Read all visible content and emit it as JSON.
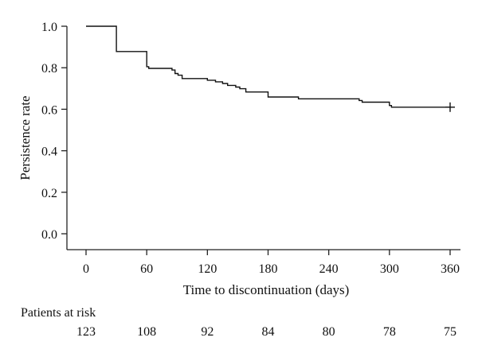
{
  "chart_data": {
    "type": "line",
    "title": "",
    "xlabel": "Time to discontinuation (days)",
    "ylabel": "Persistence rate",
    "xlim": [
      -10,
      372
    ],
    "ylim": [
      -0.08,
      1.0
    ],
    "x_ticks": [
      0,
      60,
      120,
      180,
      240,
      300,
      360
    ],
    "y_ticks": [
      0.0,
      0.2,
      0.4,
      0.6,
      0.8,
      1.0
    ],
    "x_tick_labels": [
      "0",
      "60",
      "120",
      "180",
      "240",
      "300",
      "360"
    ],
    "y_tick_labels": [
      "0.0",
      "0.2",
      "0.4",
      "0.6",
      "0.8",
      "1.0"
    ],
    "grid": false,
    "series": [
      {
        "style": "step",
        "points": [
          [
            0,
            1.0
          ],
          [
            30,
            1.0
          ],
          [
            30,
            0.878
          ],
          [
            60,
            0.878
          ],
          [
            60,
            0.805
          ],
          [
            62,
            0.805
          ],
          [
            62,
            0.797
          ],
          [
            85,
            0.797
          ],
          [
            85,
            0.789
          ],
          [
            88,
            0.789
          ],
          [
            88,
            0.772
          ],
          [
            91,
            0.772
          ],
          [
            91,
            0.764
          ],
          [
            95,
            0.764
          ],
          [
            95,
            0.748
          ],
          [
            120,
            0.748
          ],
          [
            120,
            0.74
          ],
          [
            128,
            0.74
          ],
          [
            128,
            0.732
          ],
          [
            135,
            0.732
          ],
          [
            135,
            0.724
          ],
          [
            140,
            0.724
          ],
          [
            140,
            0.715
          ],
          [
            148,
            0.715
          ],
          [
            148,
            0.707
          ],
          [
            152,
            0.707
          ],
          [
            152,
            0.699
          ],
          [
            158,
            0.699
          ],
          [
            158,
            0.683
          ],
          [
            180,
            0.683
          ],
          [
            180,
            0.659
          ],
          [
            210,
            0.659
          ],
          [
            210,
            0.65
          ],
          [
            270,
            0.65
          ],
          [
            270,
            0.642
          ],
          [
            273,
            0.642
          ],
          [
            273,
            0.634
          ],
          [
            300,
            0.634
          ],
          [
            300,
            0.618
          ],
          [
            302,
            0.618
          ],
          [
            302,
            0.61
          ],
          [
            360,
            0.61
          ]
        ],
        "censored": [
          [
            360,
            0.61
          ]
        ]
      }
    ],
    "risk_table": {
      "label": "Patients at risk",
      "times": [
        0,
        60,
        120,
        180,
        240,
        300,
        360
      ],
      "values": [
        "123",
        "108",
        "92",
        "84",
        "80",
        "78",
        "75"
      ]
    }
  }
}
